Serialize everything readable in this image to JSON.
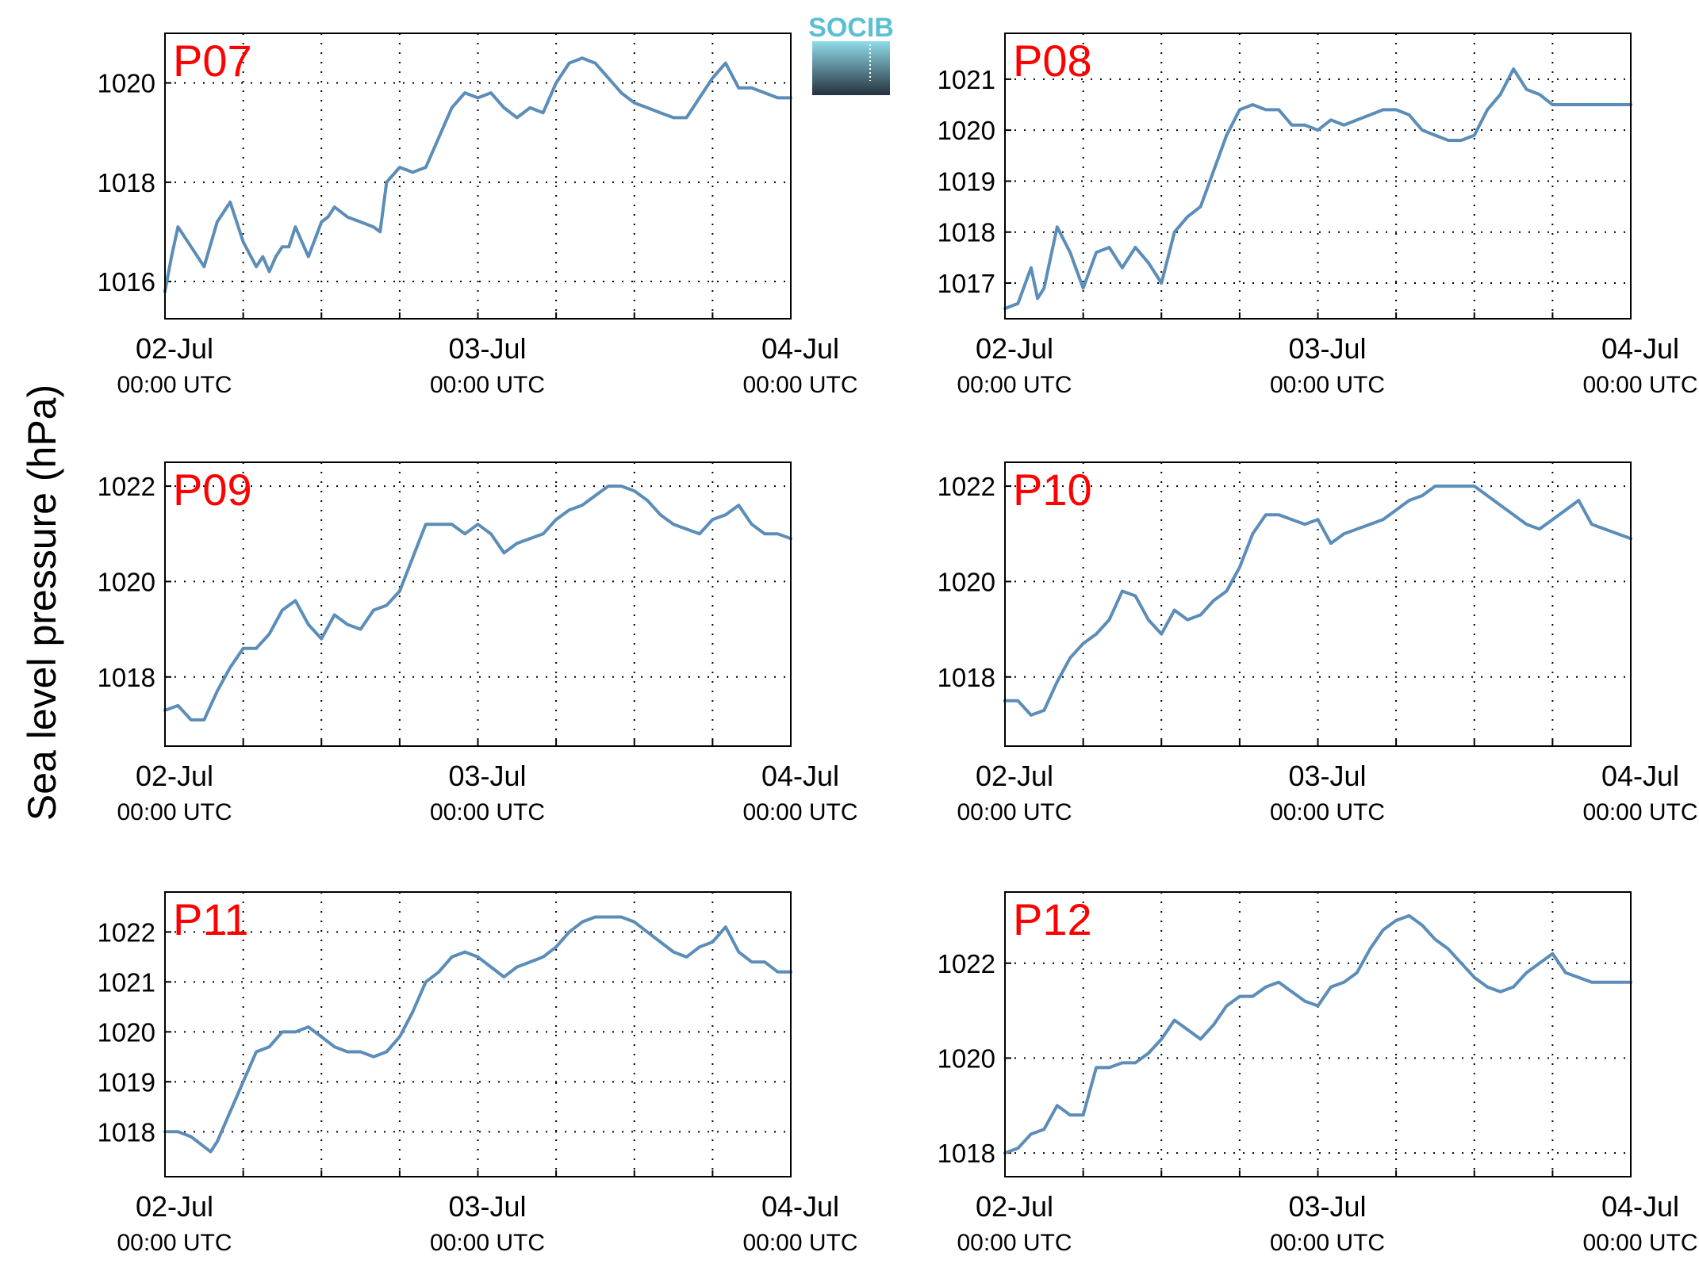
{
  "figure": {
    "ylabel": "Sea level pressure (hPa)",
    "logo_text": "SOCIB",
    "colors": {
      "line": "#5b8db8",
      "title": "#ff0000",
      "logo_text": "#5bbfd3",
      "logo_top": "#8fdbe8",
      "logo_bottom": "#24323d"
    }
  },
  "chart_data": [
    {
      "type": "line",
      "title": "P07",
      "grid": true,
      "xlim": [
        "2024-07-02 00:00",
        "2024-07-04 00:00"
      ],
      "xticks": [
        {
          "label": "02-Jul",
          "sub": "00:00 UTC"
        },
        {
          "label": "03-Jul",
          "sub": "00:00 UTC"
        },
        {
          "label": "04-Jul",
          "sub": "00:00 UTC"
        }
      ],
      "ylim": [
        1015.25,
        1021
      ],
      "yticks": [
        1016,
        1018,
        1020
      ],
      "series": [
        {
          "x_hours": [
            0,
            0.5,
            1,
            2,
            3,
            4,
            5,
            6,
            7,
            7.5,
            8,
            8.5,
            9,
            9.5,
            10,
            11,
            12,
            12.5,
            13,
            14,
            15,
            16,
            16.5,
            17,
            18,
            19,
            20,
            21,
            22,
            23,
            24,
            25,
            26,
            27,
            28,
            29,
            30,
            31,
            32,
            33,
            34,
            35,
            36,
            37,
            38,
            39,
            40,
            41,
            42,
            43,
            44,
            45,
            46,
            47,
            48
          ],
          "values": [
            1015.8,
            1016.5,
            1017.1,
            1016.7,
            1016.3,
            1017.2,
            1017.6,
            1016.8,
            1016.3,
            1016.5,
            1016.2,
            1016.5,
            1016.7,
            1016.7,
            1017.1,
            1016.5,
            1017.2,
            1017.3,
            1017.5,
            1017.3,
            1017.2,
            1017.1,
            1017.0,
            1018.0,
            1018.3,
            1018.2,
            1018.3,
            1018.9,
            1019.5,
            1019.8,
            1019.7,
            1019.8,
            1019.5,
            1019.3,
            1019.5,
            1019.4,
            1020.0,
            1020.4,
            1020.5,
            1020.4,
            1020.1,
            1019.8,
            1019.6,
            1019.5,
            1019.4,
            1019.3,
            1019.3,
            1019.7,
            1020.1,
            1020.4,
            1019.9,
            1019.9,
            1019.8,
            1019.7,
            1019.7
          ]
        }
      ]
    },
    {
      "type": "line",
      "title": "P08",
      "grid": true,
      "xlim": [
        "2024-07-02 00:00",
        "2024-07-04 00:00"
      ],
      "xticks": [
        {
          "label": "02-Jul",
          "sub": "00:00 UTC"
        },
        {
          "label": "03-Jul",
          "sub": "00:00 UTC"
        },
        {
          "label": "04-Jul",
          "sub": "00:00 UTC"
        }
      ],
      "ylim": [
        1016.3,
        1021.9
      ],
      "yticks": [
        1017,
        1018,
        1019,
        1020,
        1021
      ],
      "series": [
        {
          "x_hours": [
            0,
            1,
            2,
            2.5,
            3,
            3.5,
            4,
            5,
            6,
            7,
            8,
            9,
            10,
            11,
            12,
            13,
            14,
            15,
            16,
            17,
            18,
            19,
            20,
            21,
            22,
            23,
            24,
            25,
            26,
            27,
            28,
            29,
            30,
            31,
            32,
            33,
            34,
            35,
            36,
            37,
            38,
            39,
            40,
            41,
            42,
            43,
            44,
            45,
            46,
            47,
            48
          ],
          "values": [
            1016.5,
            1016.6,
            1017.3,
            1016.7,
            1016.9,
            1017.5,
            1018.1,
            1017.6,
            1016.9,
            1017.6,
            1017.7,
            1017.3,
            1017.7,
            1017.4,
            1017.0,
            1018.0,
            1018.3,
            1018.5,
            1019.2,
            1019.9,
            1020.4,
            1020.5,
            1020.4,
            1020.4,
            1020.1,
            1020.1,
            1020.0,
            1020.2,
            1020.1,
            1020.2,
            1020.3,
            1020.4,
            1020.4,
            1020.3,
            1020.0,
            1019.9,
            1019.8,
            1019.8,
            1019.9,
            1020.4,
            1020.7,
            1021.2,
            1020.8,
            1020.7,
            1020.5,
            1020.5,
            1020.5,
            1020.5,
            1020.5,
            1020.5,
            1020.5
          ]
        }
      ]
    },
    {
      "type": "line",
      "title": "P09",
      "grid": true,
      "xlim": [
        "2024-07-02 00:00",
        "2024-07-04 00:00"
      ],
      "xticks": [
        {
          "label": "02-Jul",
          "sub": "00:00 UTC"
        },
        {
          "label": "03-Jul",
          "sub": "00:00 UTC"
        },
        {
          "label": "04-Jul",
          "sub": "00:00 UTC"
        }
      ],
      "ylim": [
        1016.55,
        1022.5
      ],
      "yticks": [
        1018,
        1020,
        1022
      ],
      "series": [
        {
          "x_hours": [
            0,
            1,
            2,
            3,
            4,
            5,
            6,
            7,
            8,
            9,
            10,
            11,
            12,
            13,
            14,
            15,
            16,
            17,
            18,
            19,
            20,
            21,
            22,
            23,
            24,
            25,
            26,
            27,
            28,
            29,
            30,
            31,
            32,
            33,
            34,
            35,
            36,
            37,
            38,
            39,
            40,
            41,
            42,
            43,
            44,
            45,
            46,
            47,
            48
          ],
          "values": [
            1017.3,
            1017.4,
            1017.1,
            1017.1,
            1017.7,
            1018.2,
            1018.6,
            1018.6,
            1018.9,
            1019.4,
            1019.6,
            1019.1,
            1018.8,
            1019.3,
            1019.1,
            1019.0,
            1019.4,
            1019.5,
            1019.8,
            1020.5,
            1021.2,
            1021.2,
            1021.2,
            1021.0,
            1021.2,
            1021.0,
            1020.6,
            1020.8,
            1020.9,
            1021.0,
            1021.3,
            1021.5,
            1021.6,
            1021.8,
            1022.0,
            1022.0,
            1021.9,
            1021.7,
            1021.4,
            1021.2,
            1021.1,
            1021.0,
            1021.3,
            1021.4,
            1021.6,
            1021.2,
            1021.0,
            1021.0,
            1020.9
          ]
        }
      ]
    },
    {
      "type": "line",
      "title": "P10",
      "grid": true,
      "xlim": [
        "2024-07-02 00:00",
        "2024-07-04 00:00"
      ],
      "xticks": [
        {
          "label": "02-Jul",
          "sub": "00:00 UTC"
        },
        {
          "label": "03-Jul",
          "sub": "00:00 UTC"
        },
        {
          "label": "04-Jul",
          "sub": "00:00 UTC"
        }
      ],
      "ylim": [
        1016.55,
        1022.5
      ],
      "yticks": [
        1018,
        1020,
        1022
      ],
      "series": [
        {
          "x_hours": [
            0,
            1,
            2,
            3,
            4,
            5,
            6,
            7,
            8,
            9,
            10,
            11,
            12,
            13,
            14,
            15,
            16,
            17,
            18,
            19,
            20,
            21,
            22,
            23,
            24,
            25,
            26,
            27,
            28,
            29,
            30,
            31,
            32,
            33,
            34,
            35,
            36,
            37,
            38,
            39,
            40,
            41,
            42,
            43,
            44,
            45,
            46,
            47,
            48
          ],
          "values": [
            1017.5,
            1017.5,
            1017.2,
            1017.3,
            1017.9,
            1018.4,
            1018.7,
            1018.9,
            1019.2,
            1019.8,
            1019.7,
            1019.2,
            1018.9,
            1019.4,
            1019.2,
            1019.3,
            1019.6,
            1019.8,
            1020.3,
            1021.0,
            1021.4,
            1021.4,
            1021.3,
            1021.2,
            1021.3,
            1020.8,
            1021.0,
            1021.1,
            1021.2,
            1021.3,
            1021.5,
            1021.7,
            1021.8,
            1022.0,
            1022.0,
            1022.0,
            1022.0,
            1021.8,
            1021.6,
            1021.4,
            1021.2,
            1021.1,
            1021.3,
            1021.5,
            1021.7,
            1021.2,
            1021.1,
            1021.0,
            1020.9
          ]
        }
      ]
    },
    {
      "type": "line",
      "title": "P11",
      "grid": true,
      "xlim": [
        "2024-07-02 00:00",
        "2024-07-04 00:00"
      ],
      "xticks": [
        {
          "label": "02-Jul",
          "sub": "00:00 UTC"
        },
        {
          "label": "03-Jul",
          "sub": "00:00 UTC"
        },
        {
          "label": "04-Jul",
          "sub": "00:00 UTC"
        }
      ],
      "ylim": [
        1017.1,
        1022.8
      ],
      "yticks": [
        1018,
        1019,
        1020,
        1021,
        1022
      ],
      "series": [
        {
          "x_hours": [
            0,
            1,
            2,
            3,
            3.5,
            4,
            5,
            6,
            7,
            8,
            9,
            10,
            11,
            12,
            13,
            14,
            15,
            16,
            17,
            18,
            19,
            20,
            21,
            22,
            23,
            24,
            25,
            26,
            27,
            28,
            29,
            30,
            31,
            32,
            33,
            34,
            35,
            36,
            37,
            38,
            39,
            40,
            41,
            42,
            43,
            44,
            45,
            46,
            47,
            48
          ],
          "values": [
            1018.0,
            1018.0,
            1017.9,
            1017.7,
            1017.6,
            1017.8,
            1018.4,
            1019.0,
            1019.6,
            1019.7,
            1020.0,
            1020.0,
            1020.1,
            1019.9,
            1019.7,
            1019.6,
            1019.6,
            1019.5,
            1019.6,
            1019.9,
            1020.4,
            1021.0,
            1021.2,
            1021.5,
            1021.6,
            1021.5,
            1021.3,
            1021.1,
            1021.3,
            1021.4,
            1021.5,
            1021.7,
            1022.0,
            1022.2,
            1022.3,
            1022.3,
            1022.3,
            1022.2,
            1022.0,
            1021.8,
            1021.6,
            1021.5,
            1021.7,
            1021.8,
            1022.1,
            1021.6,
            1021.4,
            1021.4,
            1021.2,
            1021.2
          ]
        }
      ]
    },
    {
      "type": "line",
      "title": "P12",
      "grid": true,
      "xlim": [
        "2024-07-02 00:00",
        "2024-07-04 00:00"
      ],
      "xticks": [
        {
          "label": "02-Jul",
          "sub": "00:00 UTC"
        },
        {
          "label": "03-Jul",
          "sub": "00:00 UTC"
        },
        {
          "label": "04-Jul",
          "sub": "00:00 UTC"
        }
      ],
      "ylim": [
        1017.5,
        1023.5
      ],
      "yticks": [
        1018,
        1020,
        1022
      ],
      "series": [
        {
          "x_hours": [
            0,
            1,
            2,
            3,
            4,
            5,
            6,
            7,
            8,
            9,
            10,
            11,
            12,
            13,
            14,
            15,
            16,
            17,
            18,
            19,
            20,
            21,
            22,
            23,
            24,
            25,
            26,
            27,
            28,
            29,
            30,
            31,
            32,
            33,
            34,
            35,
            36,
            37,
            38,
            39,
            40,
            41,
            42,
            43,
            44,
            45,
            46,
            47,
            48
          ],
          "values": [
            1018.0,
            1018.1,
            1018.4,
            1018.5,
            1019.0,
            1018.8,
            1018.8,
            1019.8,
            1019.8,
            1019.9,
            1019.9,
            1020.1,
            1020.4,
            1020.8,
            1020.6,
            1020.4,
            1020.7,
            1021.1,
            1021.3,
            1021.3,
            1021.5,
            1021.6,
            1021.4,
            1021.2,
            1021.1,
            1021.5,
            1021.6,
            1021.8,
            1022.3,
            1022.7,
            1022.9,
            1023.0,
            1022.8,
            1022.5,
            1022.3,
            1022.0,
            1021.7,
            1021.5,
            1021.4,
            1021.5,
            1021.8,
            1022.0,
            1022.2,
            1021.8,
            1021.7,
            1021.6,
            1021.6,
            1021.6,
            1021.6
          ]
        }
      ]
    }
  ]
}
